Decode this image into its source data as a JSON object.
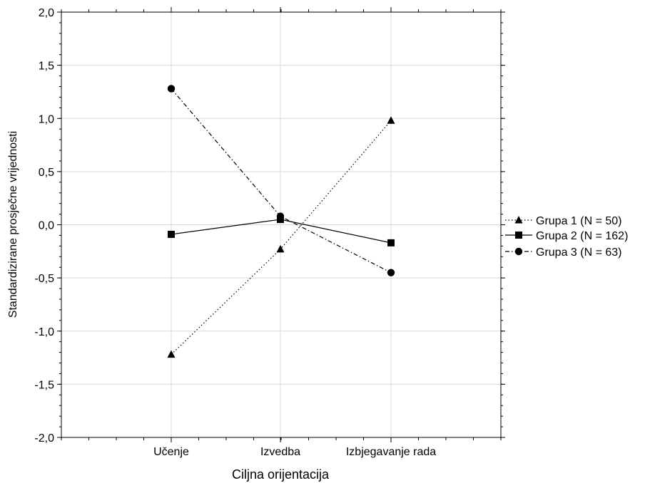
{
  "chart_data": {
    "type": "line",
    "title": "",
    "xlabel": "Ciljna orijentacija",
    "ylabel": "Standardizirane prosječne vrijednosti",
    "categories": [
      "Učenje",
      "Izvedba",
      "Izbjegavanje rada"
    ],
    "ylim": [
      -2.0,
      2.0
    ],
    "yticks": [
      "-2,0",
      "-1,5",
      "-1,0",
      "-0,5",
      "0,0",
      "0,5",
      "1,0",
      "1,5",
      "2,0"
    ],
    "ytick_values": [
      -2.0,
      -1.5,
      -1.0,
      -0.5,
      0.0,
      0.5,
      1.0,
      1.5,
      2.0
    ],
    "grid": true,
    "legend_position": "right",
    "series": [
      {
        "name": "Grupa 1 (N = 50)",
        "marker": "triangle",
        "line_style": "dotted",
        "values": [
          -1.22,
          -0.23,
          0.98
        ]
      },
      {
        "name": "Grupa 2 (N = 162)",
        "marker": "square",
        "line_style": "solid",
        "values": [
          -0.09,
          0.05,
          -0.17
        ]
      },
      {
        "name": "Grupa 3 (N = 63)",
        "marker": "circle",
        "line_style": "dash-dot",
        "values": [
          1.28,
          0.08,
          -0.45
        ]
      }
    ],
    "colors": {
      "line": "#000000",
      "grid": "#d9d9d9"
    }
  }
}
